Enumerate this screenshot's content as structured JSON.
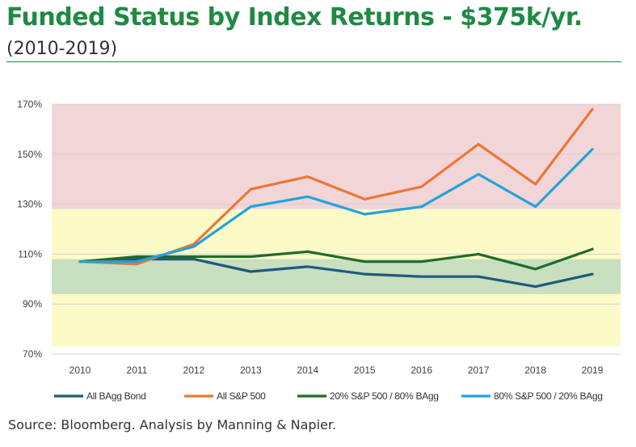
{
  "header": {
    "title": "Funded Status by Index Returns - $375k/yr.",
    "subtitle": "(2010-2019)"
  },
  "footer": {
    "source": "Source: Bloomberg. Analysis by Manning & Napier."
  },
  "chart_data": {
    "type": "line",
    "x": [
      "2010",
      "2011",
      "2012",
      "2013",
      "2014",
      "2015",
      "2016",
      "2017",
      "2018",
      "2019"
    ],
    "ylim": [
      70,
      170
    ],
    "yticks": [
      70,
      90,
      110,
      130,
      150,
      170
    ],
    "ytick_labels": [
      "70%",
      "90%",
      "110%",
      "130%",
      "150%",
      "170%"
    ],
    "grid": "horizontal",
    "legend": "bottom",
    "bands": [
      {
        "from": 73,
        "to": 128,
        "color": "#fcfbc8"
      },
      {
        "from": 128,
        "to": 170,
        "color": "#f2d5d7"
      },
      {
        "from": 94,
        "to": 108,
        "color": "#c8dfc0"
      }
    ],
    "series": [
      {
        "name": "All BAgg Bond",
        "color": "#1e5a7d",
        "values": [
          107,
          108,
          108,
          103,
          105,
          102,
          101,
          101,
          97,
          102
        ]
      },
      {
        "name": "All S&P 500",
        "color": "#ec7637",
        "values": [
          107,
          106,
          114,
          136,
          141,
          132,
          137,
          154,
          138,
          168
        ]
      },
      {
        "name": "20% S&P 500 / 80% BAgg",
        "color": "#1f6b2a",
        "values": [
          107,
          109,
          109,
          109,
          111,
          107,
          107,
          110,
          104,
          112
        ]
      },
      {
        "name": "80% S&P 500 / 20% BAgg",
        "color": "#23a3dc",
        "values": [
          107,
          107,
          113,
          129,
          133,
          126,
          129,
          142,
          129,
          152
        ]
      }
    ]
  }
}
